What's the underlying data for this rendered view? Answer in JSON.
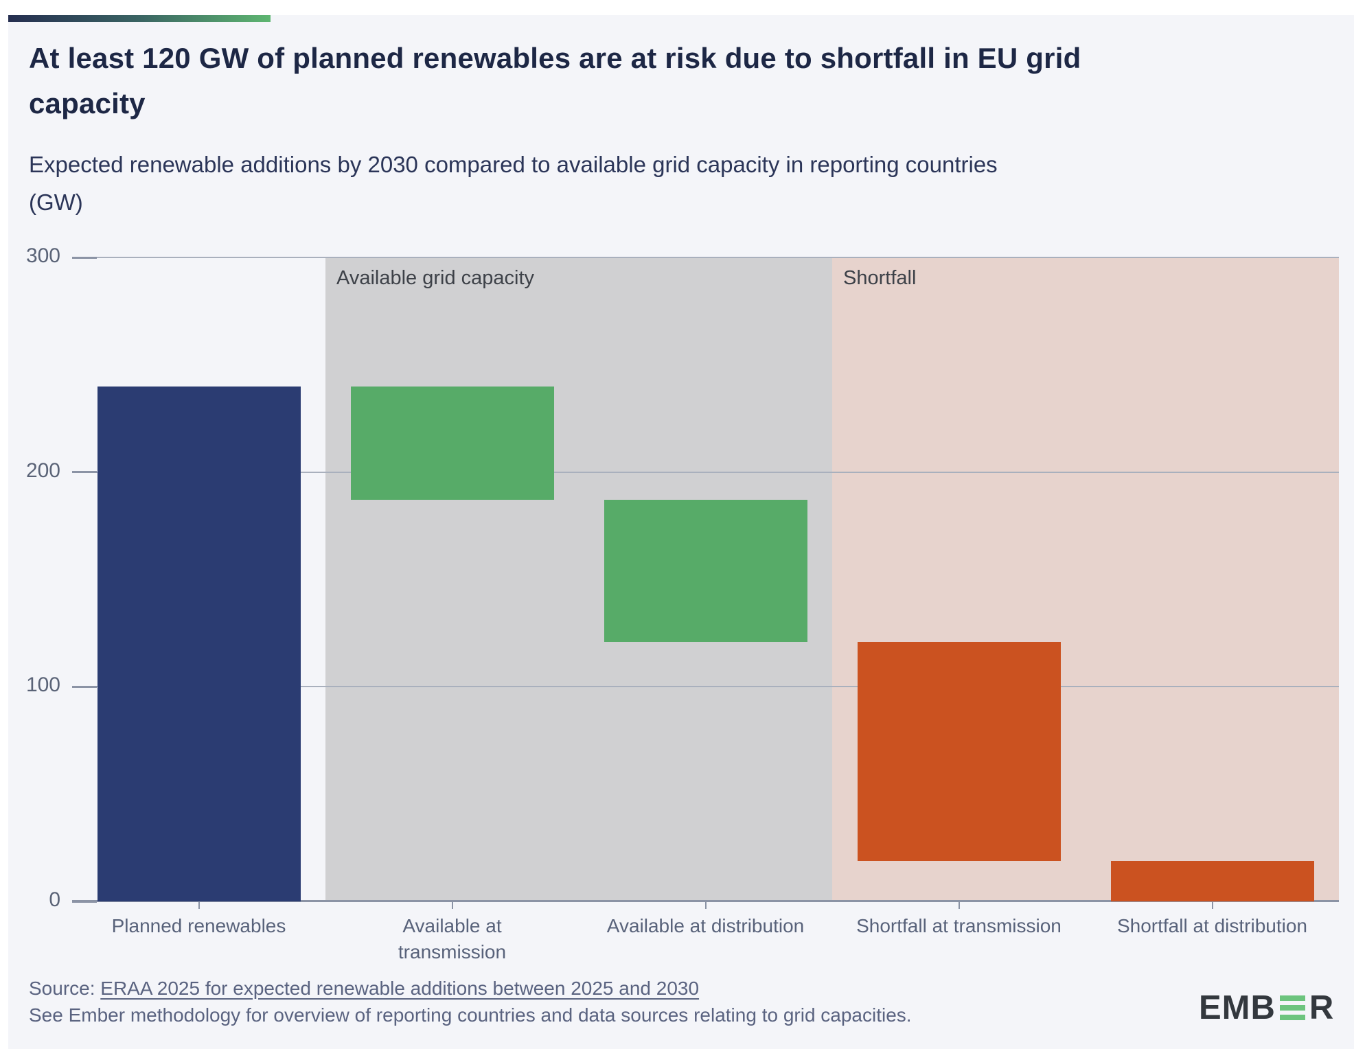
{
  "page": {
    "background": "#f4f5f9",
    "top_strip_color": "#ffffff",
    "accent_gradient": {
      "from": "#252e50",
      "mid": "#3a6463",
      "to": "#5eb671"
    }
  },
  "chart_data": {
    "type": "bar",
    "subtype": "waterfall",
    "unit": "GW",
    "title": "At least 120 GW of planned renewables are at risk due to shortfall in EU grid capacity",
    "title_lines": [
      "At least 120 GW of planned renewables are at risk due to shortfall in EU grid",
      "capacity"
    ],
    "subtitle": "Expected renewable additions by 2030 compared to available grid capacity in reporting countries (GW)",
    "subtitle_lines": [
      "Expected renewable additions by 2030 compared to available grid capacity in reporting countries",
      "(GW)"
    ],
    "ylim": [
      0,
      300
    ],
    "yticks": [
      0,
      100,
      200,
      300
    ],
    "grid": true,
    "legend": "none",
    "categories": [
      "Planned renewables",
      "Available at transmission",
      "Available at distribution",
      "Shortfall at transmission",
      "Shortfall at distribution"
    ],
    "category_label_lines": [
      [
        "Planned renewables"
      ],
      [
        "Available at",
        "transmission"
      ],
      [
        "Available at distribution"
      ],
      [
        "Shortfall at transmission"
      ],
      [
        "Shortfall at distribution"
      ]
    ],
    "bars": [
      {
        "category": "Planned renewables",
        "base": 0,
        "top": 240,
        "value": 240,
        "color": "#2b3c72"
      },
      {
        "category": "Available at transmission",
        "base": 187,
        "top": 240,
        "value": 53,
        "color": "#57ab68"
      },
      {
        "category": "Available at distribution",
        "base": 121,
        "top": 187,
        "value": 66,
        "color": "#57ab68"
      },
      {
        "category": "Shortfall at transmission",
        "base": 19,
        "top": 121,
        "value": 102,
        "color": "#cb5220"
      },
      {
        "category": "Shortfall at distribution",
        "base": 0,
        "top": 19,
        "value": 19,
        "color": "#cb5220"
      }
    ],
    "regions": [
      {
        "label": "Available grid capacity",
        "from_category": 1,
        "to_category": 2,
        "color": "#d0d0d2"
      },
      {
        "label": "Shortfall",
        "from_category": 3,
        "to_category": 4,
        "color": "#e7d3cd"
      }
    ],
    "colors": {
      "gridline": "#a9b0bd",
      "axis": "#8b93a5",
      "y_tick_label": "#5a6377",
      "category_label": "#58627a",
      "region_label": "#3d4148"
    }
  },
  "footer": {
    "source_prefix": "Source: ",
    "source_link": "ERAA 2025 for expected renewable additions between 2025 and 2030",
    "methodology_note": "See Ember methodology for overview of reporting countries and data sources relating to grid capacities.",
    "logo": {
      "text_pre": "EMB",
      "text_post": "R",
      "green_e_bars": 3,
      "color_dark": "#33383e",
      "color_green": "#6cc47e"
    }
  }
}
